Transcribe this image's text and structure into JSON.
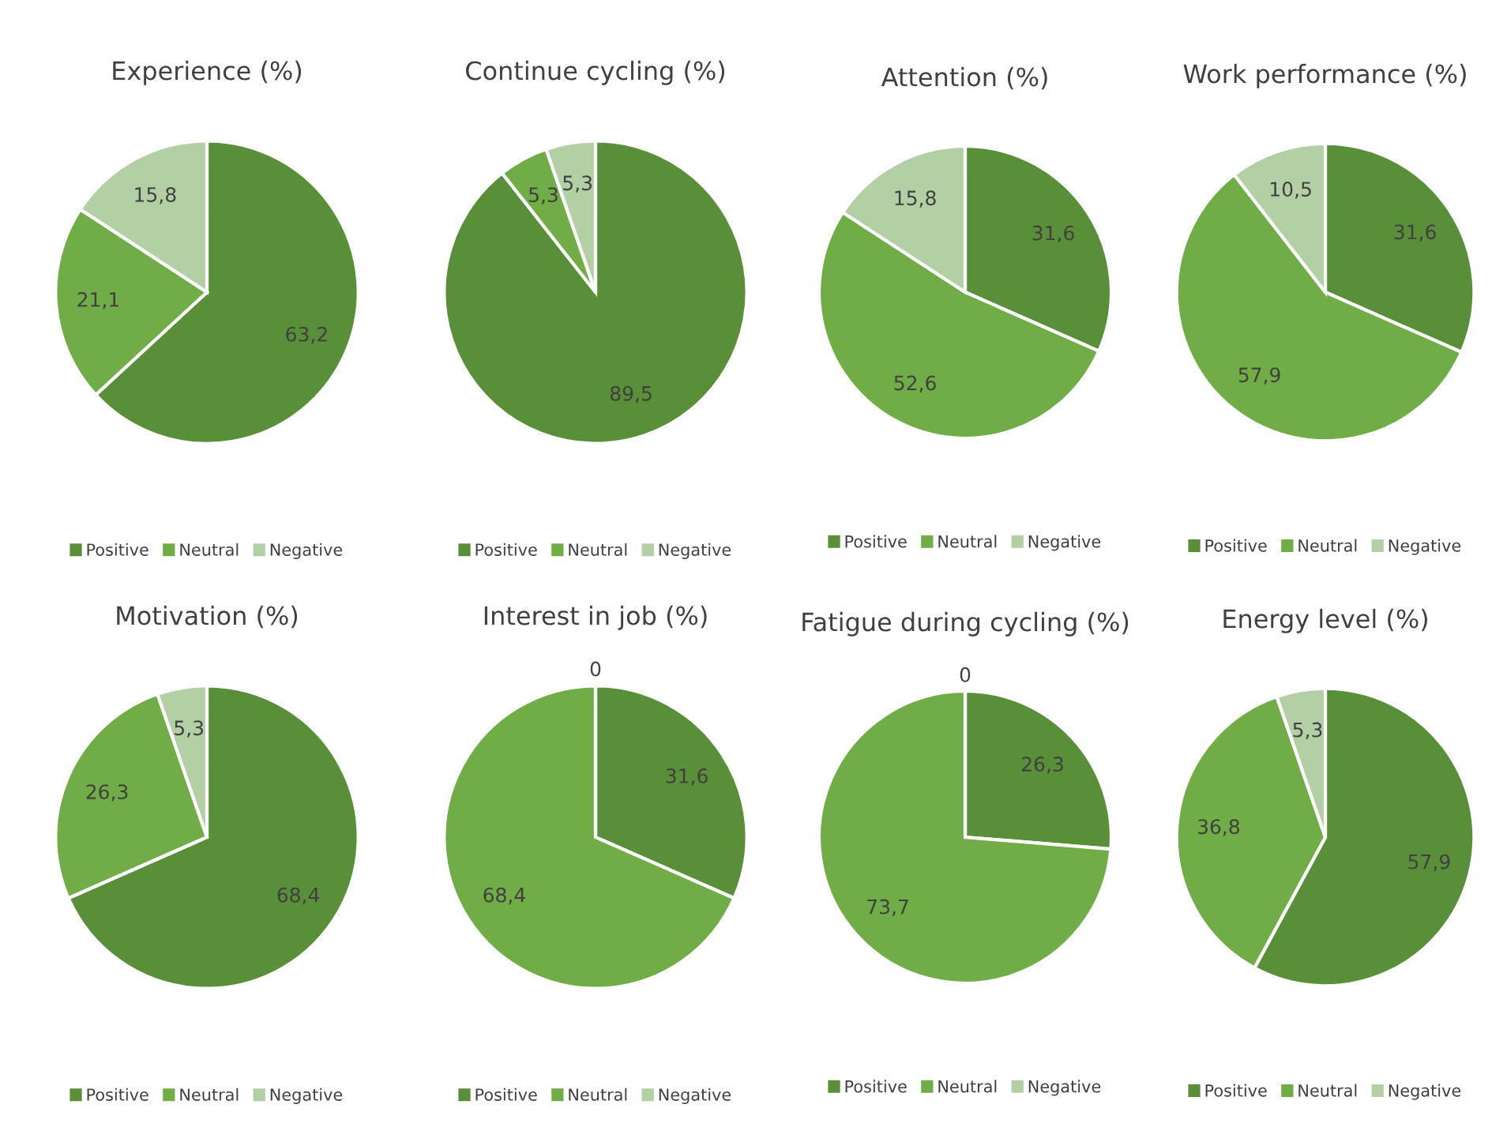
{
  "chart_data": [
    {
      "type": "pie",
      "title": "Experience (%)",
      "categories": [
        "Positive",
        "Neutral",
        "Negative"
      ],
      "values": [
        63.2,
        21.1,
        15.8
      ],
      "value_labels": [
        "63,2",
        "21,1",
        "15,8"
      ],
      "colors": [
        "#5a8f3a",
        "#70ad47",
        "#b3d0a5"
      ],
      "legend": "bottom"
    },
    {
      "type": "pie",
      "title": "Continue cycling (%)",
      "categories": [
        "Positive",
        "Neutral",
        "Negative"
      ],
      "values": [
        89.5,
        5.3,
        5.3
      ],
      "value_labels": [
        "89,5",
        "5,3",
        "5,3"
      ],
      "colors": [
        "#5a8f3a",
        "#70ad47",
        "#b3d0a5"
      ],
      "legend": "bottom"
    },
    {
      "type": "pie",
      "title": "Attention (%)",
      "categories": [
        "Positive",
        "Neutral",
        "Negative"
      ],
      "values": [
        31.6,
        52.6,
        15.8
      ],
      "value_labels": [
        "31,6",
        "52,6",
        "15,8"
      ],
      "colors": [
        "#5a8f3a",
        "#70ad47",
        "#b3d0a5"
      ],
      "legend": "bottom"
    },
    {
      "type": "pie",
      "title": "Work performance (%)",
      "categories": [
        "Positive",
        "Neutral",
        "Negative"
      ],
      "values": [
        31.6,
        57.9,
        10.5
      ],
      "value_labels": [
        "31,6",
        "57,9",
        "10,5"
      ],
      "colors": [
        "#5a8f3a",
        "#70ad47",
        "#b3d0a5"
      ],
      "legend": "bottom"
    },
    {
      "type": "pie",
      "title": "Motivation (%)",
      "categories": [
        "Positive",
        "Neutral",
        "Negative"
      ],
      "values": [
        68.4,
        26.3,
        5.3
      ],
      "value_labels": [
        "68,4",
        "26,3",
        "5,3"
      ],
      "colors": [
        "#5a8f3a",
        "#70ad47",
        "#b3d0a5"
      ],
      "legend": "bottom"
    },
    {
      "type": "pie",
      "title": "Interest in job (%)",
      "categories": [
        "Positive",
        "Neutral",
        "Negative"
      ],
      "values": [
        31.6,
        68.4,
        0
      ],
      "value_labels": [
        "31,6",
        "68,4",
        "0"
      ],
      "colors": [
        "#5a8f3a",
        "#70ad47",
        "#b3d0a5"
      ],
      "legend": "bottom"
    },
    {
      "type": "pie",
      "title": "Fatigue during cycling (%)",
      "categories": [
        "Positive",
        "Neutral",
        "Negative"
      ],
      "values": [
        26.3,
        73.7,
        0
      ],
      "value_labels": [
        "26,3",
        "73,7",
        "0"
      ],
      "colors": [
        "#5a8f3a",
        "#70ad47",
        "#b3d0a5"
      ],
      "legend": "bottom"
    },
    {
      "type": "pie",
      "title": "Energy level (%)",
      "categories": [
        "Positive",
        "Neutral",
        "Negative"
      ],
      "values": [
        57.9,
        36.8,
        5.3
      ],
      "value_labels": [
        "57,9",
        "36,8",
        "5,3"
      ],
      "colors": [
        "#5a8f3a",
        "#70ad47",
        "#b3d0a5"
      ],
      "legend": "bottom"
    }
  ]
}
